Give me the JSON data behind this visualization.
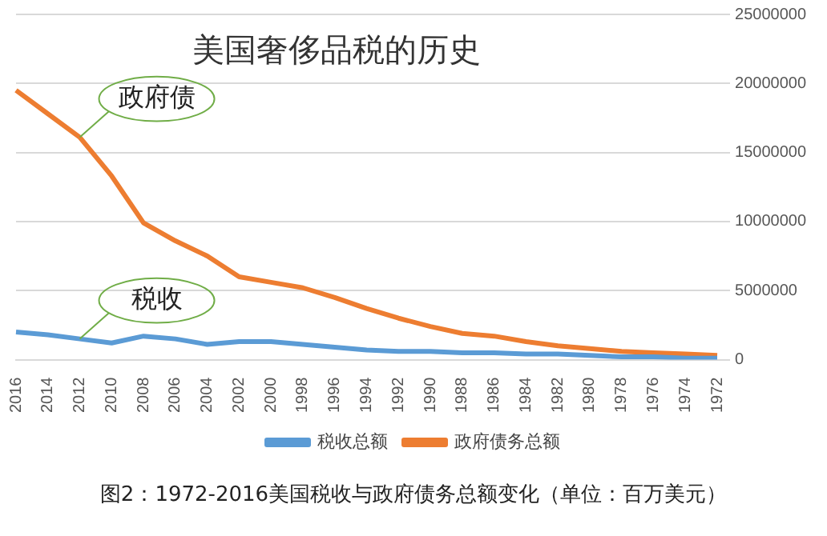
{
  "chart_data": {
    "type": "line",
    "categories": [
      "2016",
      "2014",
      "2012",
      "2010",
      "2008",
      "2006",
      "2004",
      "2002",
      "2000",
      "1998",
      "1996",
      "1994",
      "1992",
      "1990",
      "1988",
      "1986",
      "1984",
      "1982",
      "1980",
      "1978",
      "1976",
      "1974",
      "1972"
    ],
    "series": [
      {
        "name": "税收总额",
        "color": "#5b9bd5",
        "values": [
          2000000,
          1800000,
          1500000,
          1200000,
          1700000,
          1500000,
          1100000,
          1300000,
          1300000,
          1100000,
          900000,
          700000,
          600000,
          600000,
          500000,
          500000,
          400000,
          400000,
          300000,
          200000,
          200000,
          100000,
          100000
        ]
      },
      {
        "name": "政府债务总额",
        "color": "#ed7d31",
        "values": [
          19500000,
          17800000,
          16100000,
          13300000,
          9900000,
          8600000,
          7500000,
          6000000,
          5600000,
          5200000,
          4500000,
          3700000,
          3000000,
          2400000,
          1900000,
          1700000,
          1300000,
          1000000,
          800000,
          600000,
          500000,
          400000,
          300000
        ]
      }
    ],
    "ylim": [
      0,
      25000000
    ],
    "yticks": [
      0,
      5000000,
      10000000,
      15000000,
      20000000,
      25000000
    ],
    "grid": "y",
    "legend": "bottom",
    "marker": "none",
    "line_style": "solid",
    "annotations": [
      {
        "text": "政府债",
        "x": "2012",
        "y": 16100000
      },
      {
        "text": "税收",
        "x": "2012",
        "y": 1500000
      },
      "美国奢侈品税的历史",
      "图2：1972-2016美国税收与政府债务总额变化（单位：百万美元）"
    ]
  }
}
